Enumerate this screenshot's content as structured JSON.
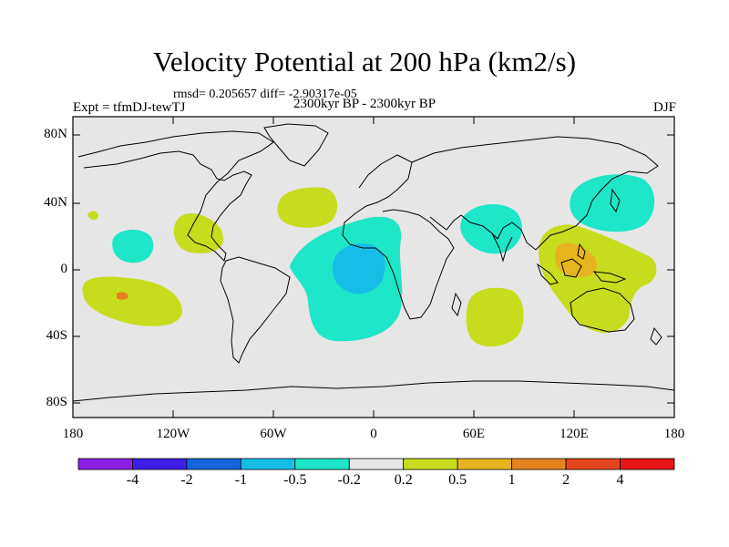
{
  "title": "Velocity Potential at 200 hPa (km2/s)",
  "stats_line": "rmsd= 0.205657 diff= -2.90317e-05",
  "experiment": "Expt = tfmDJ-tewTJ",
  "period": "2300kyr BP - 2300kyr BP",
  "season": "DJF",
  "y_ticks": [
    "80N",
    "40N",
    "0",
    "40S",
    "80S"
  ],
  "x_ticks": [
    "180",
    "120W",
    "60W",
    "0",
    "60E",
    "120E",
    "180"
  ],
  "colors": {
    "ocean": "#e6e6e6",
    "neg_0_5": "#1ee6c8",
    "neg_1": "#14bee6",
    "pos_0_2": "#c8dc1e",
    "pos_0_5": "#e6b41e",
    "pos_1": "#e6821e",
    "coast": "#000000"
  },
  "colorbar": {
    "labels": [
      "-4",
      "-2",
      "-1",
      "-0.5",
      "-0.2",
      "0.2",
      "0.5",
      "1",
      "2",
      "4"
    ],
    "colors": [
      "#8c1ee6",
      "#3c1ee6",
      "#1464dc",
      "#14bee6",
      "#1ee6c8",
      "#e6e6e6",
      "#c8dc1e",
      "#e6b41e",
      "#e6821e",
      "#e6461e",
      "#e61414"
    ]
  }
}
